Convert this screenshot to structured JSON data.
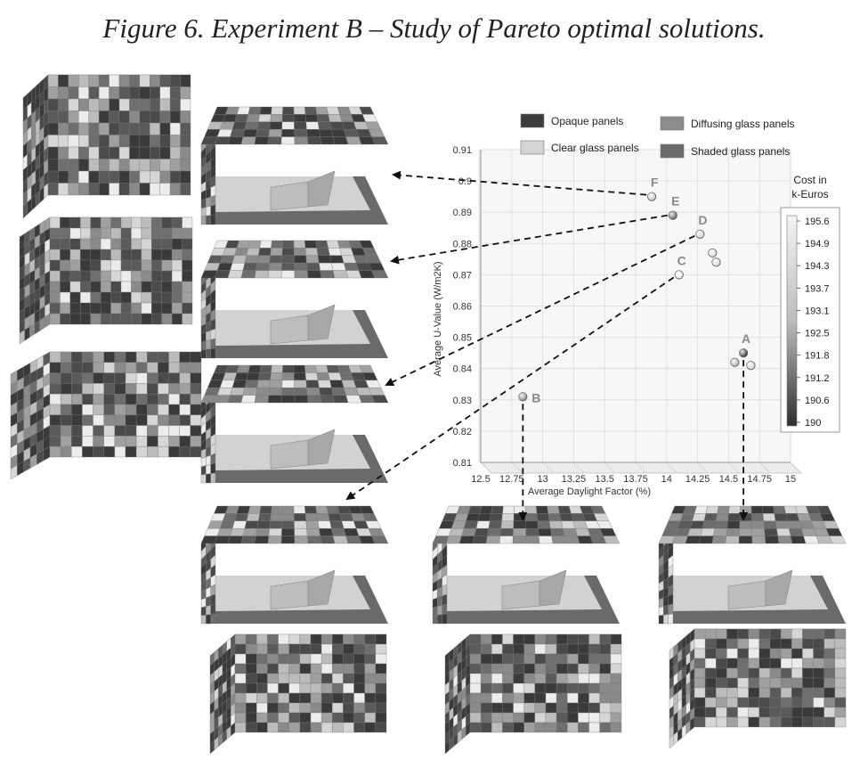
{
  "figure": {
    "title": "Figure 6. Experiment B – Study of Pareto optimal solutions."
  },
  "chart_data": {
    "type": "scatter",
    "title": "",
    "xlabel": "Average Daylight Factor (%)",
    "ylabel": "Average U-Value (W/m2K)",
    "xlim": [
      12.5,
      15
    ],
    "ylim": [
      0.81,
      0.91
    ],
    "x_ticks": [
      "12.5",
      "12.75",
      "13",
      "13.25",
      "13.5",
      "13.75",
      "14",
      "14.25",
      "14.5",
      "14.75",
      "15"
    ],
    "y_ticks": [
      "0.81",
      "0.82",
      "0.83",
      "0.84",
      "0.85",
      "0.86",
      "0.87",
      "0.88",
      "0.89",
      "0.9",
      "0.91"
    ],
    "grid": true,
    "points": [
      {
        "label": "F",
        "x": 13.88,
        "y": 0.895,
        "cost": 194.3
      },
      {
        "label": "E",
        "x": 14.05,
        "y": 0.889,
        "cost": 191.2
      },
      {
        "label": "D",
        "x": 14.27,
        "y": 0.883,
        "cost": 194.6
      },
      {
        "label": "",
        "x": 14.37,
        "y": 0.877,
        "cost": 194.9
      },
      {
        "label": "",
        "x": 14.4,
        "y": 0.874,
        "cost": 194.9
      },
      {
        "label": "C",
        "x": 14.1,
        "y": 0.87,
        "cost": 195.2
      },
      {
        "label": "A",
        "x": 14.62,
        "y": 0.845,
        "cost": 190.0
      },
      {
        "label": "",
        "x": 14.55,
        "y": 0.842,
        "cost": 193.7
      },
      {
        "label": "",
        "x": 14.68,
        "y": 0.841,
        "cost": 194.6
      },
      {
        "label": "B",
        "x": 12.84,
        "y": 0.831,
        "cost": 192.5
      }
    ],
    "legend": {
      "placement": "top",
      "entries": [
        {
          "label": "Opaque panels",
          "color": "#3c3c3c"
        },
        {
          "label": "Clear glass panels",
          "color": "#d4d4d4"
        },
        {
          "label": "Diffusing glass panels",
          "color": "#8c8c8c"
        },
        {
          "label": "Shaded glass panels",
          "color": "#6a6a6a"
        }
      ]
    },
    "colorbar": {
      "title_line1": "Cost in",
      "title_line2": "k-Euros",
      "ticks": [
        "195.6",
        "194.9",
        "194.3",
        "193.7",
        "193.1",
        "192.5",
        "191.8",
        "191.2",
        "190.6",
        "190"
      ],
      "min": 190,
      "max": 195.6,
      "color_min": "#2e2e2e",
      "color_max": "#f4f4f4"
    }
  }
}
